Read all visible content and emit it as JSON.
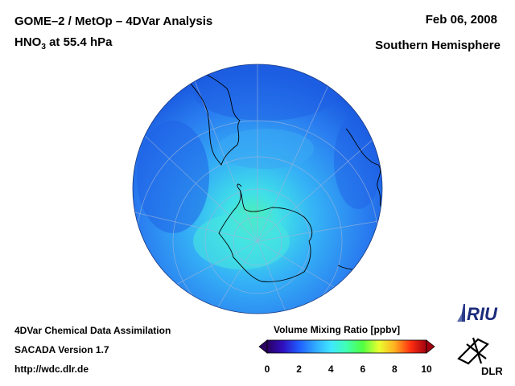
{
  "header": {
    "title_line1": "GOME–2 / MetOp – 4DVar Analysis",
    "species_prefix": "HNO",
    "species_subscript": "3",
    "species_suffix": " at 55.4 hPa",
    "date": "Feb 06, 2008",
    "hemisphere": "Southern Hemisphere"
  },
  "footer": {
    "line1": "4DVar Chemical Data Assimilation",
    "line2": "SACADA Version 1.7",
    "line3": "http://wdc.dlr.de"
  },
  "colorbar": {
    "title": "Volume Mixing Ratio [ppbv]",
    "ticks": [
      "0",
      "2",
      "4",
      "6",
      "8",
      "10"
    ],
    "colors": [
      "#2a0060",
      "#3010c0",
      "#1f5cff",
      "#30a8ff",
      "#40e6ff",
      "#40ffb0",
      "#50ff40",
      "#e8ff30",
      "#ffb020",
      "#ff3010",
      "#a00010"
    ]
  },
  "logos": {
    "riu": "RIU",
    "dlr": "DLR"
  },
  "map": {
    "projection": "orthographic-south-polar",
    "field_colors": {
      "background": "#2a78ee",
      "low": "#1a5ae0",
      "mid": "#33a8f6",
      "high": "#40dff0",
      "peak": "#4ef0b0"
    },
    "coastline_color": "#000000",
    "grid_color": "#9fb4d8"
  }
}
